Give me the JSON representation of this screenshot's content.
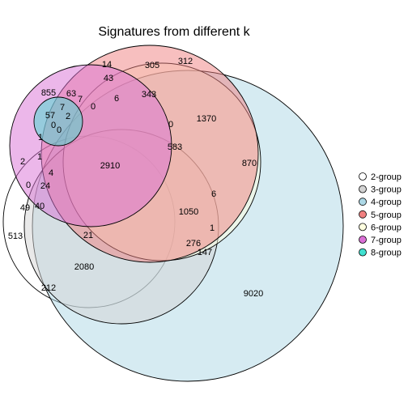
{
  "chart_data": {
    "type": "venn",
    "title": "Signatures from different k",
    "legend_placement": "right",
    "sets": [
      {
        "name": "2-group",
        "color": "#ffffff"
      },
      {
        "name": "3-group",
        "color": "#d3d3d3"
      },
      {
        "name": "4-group",
        "color": "#add8e6"
      },
      {
        "name": "5-group",
        "color": "#f08080"
      },
      {
        "name": "6-group",
        "color": "#ffffe0"
      },
      {
        "name": "7-group",
        "color": "#da70d6"
      },
      {
        "name": "8-group",
        "color": "#40e0d0"
      }
    ],
    "region_counts": [
      "14",
      "312",
      "305",
      "43",
      "855",
      "63",
      "343",
      "7",
      "6",
      "57",
      "7",
      "0",
      "1370",
      "2",
      "0",
      "0",
      "1",
      "0",
      "583",
      "2910",
      "870",
      "2",
      "1",
      "4",
      "0",
      "24",
      "6",
      "49",
      "40",
      "1050",
      "513",
      "21",
      "1",
      "276",
      "147",
      "2080",
      "212",
      "9020"
    ]
  }
}
